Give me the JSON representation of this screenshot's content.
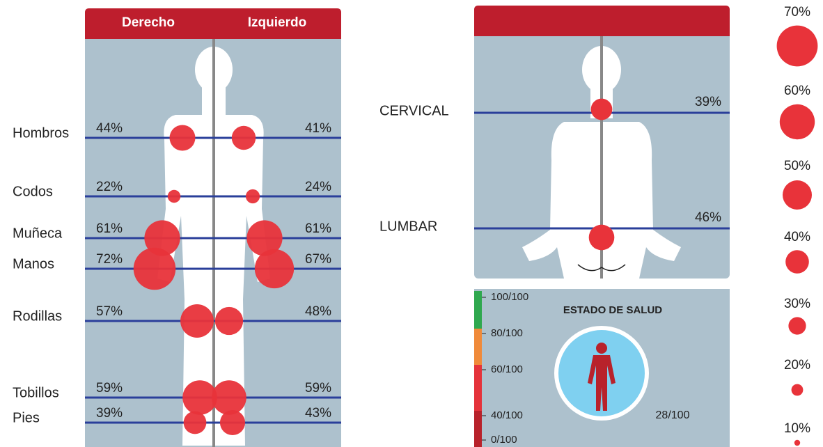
{
  "body_map": {
    "headers": [
      "Derecho",
      "Izquierdo"
    ],
    "regions": [
      "Hombros",
      "Codos",
      "Muñeca",
      "Manos",
      "Rodillas",
      "Tobillos",
      "Pies"
    ],
    "derecho": {
      "values": [
        44,
        22,
        61,
        72,
        57,
        59,
        39
      ],
      "value_labels": [
        "44%",
        "22%",
        "61%",
        "72%",
        "57%",
        "59%",
        "39%"
      ]
    },
    "izquierdo": {
      "values": [
        41,
        24,
        61,
        67,
        48,
        59,
        43
      ],
      "value_labels": [
        "41%",
        "24%",
        "61%",
        "67%",
        "48%",
        "59%",
        "43%"
      ]
    }
  },
  "spine": {
    "regions": [
      "CERVICAL",
      "LUMBAR"
    ],
    "values": [
      39,
      46
    ],
    "value_labels": [
      "39%",
      "46%"
    ]
  },
  "health": {
    "title": "ESTADO DE SALUD",
    "scale_ticks": [
      {
        "value": 100,
        "label": "100/100"
      },
      {
        "value": 80,
        "label": "80/100"
      },
      {
        "value": 60,
        "label": "60/100"
      },
      {
        "value": 40,
        "label": "40/100"
      },
      {
        "value": 0,
        "label": "0/100"
      }
    ],
    "scale_colors": [
      "#2fa84f",
      "#f08a3a",
      "#e5333b",
      "#b8222b"
    ],
    "score": {
      "value": 28,
      "label": "28/100"
    }
  },
  "size_legend": {
    "values": [
      70,
      60,
      50,
      40,
      30,
      20,
      10
    ],
    "value_labels": [
      "70%",
      "60%",
      "50%",
      "40%",
      "30%",
      "20%",
      "10%"
    ]
  }
}
